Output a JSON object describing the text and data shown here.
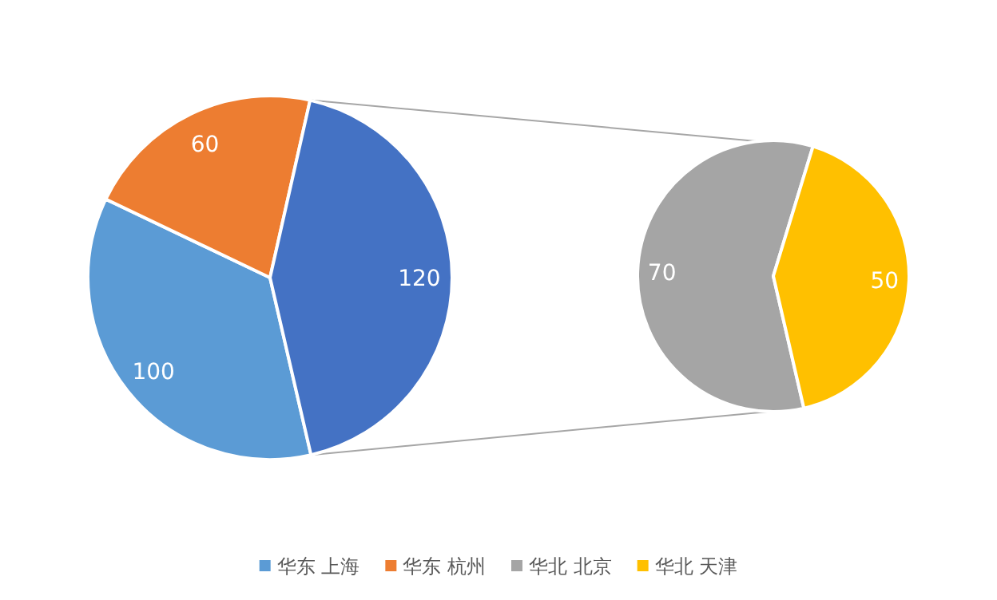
{
  "chart_data": [
    {
      "type": "pie",
      "categories": [
        "华东 上海",
        "华东 杭州",
        null
      ],
      "values": [
        100,
        60,
        120
      ],
      "colors": [
        "#5b9bd5",
        "#ed7d31",
        "#4472c4"
      ],
      "data_labels": true,
      "legend": "bottom"
    },
    {
      "type": "pie",
      "categories": [
        "华北 北京",
        "华北 天津"
      ],
      "values": [
        70,
        50
      ],
      "colors": [
        "#a5a5a5",
        "#ffc000"
      ],
      "data_labels": true,
      "legend": "bottom"
    }
  ]
}
